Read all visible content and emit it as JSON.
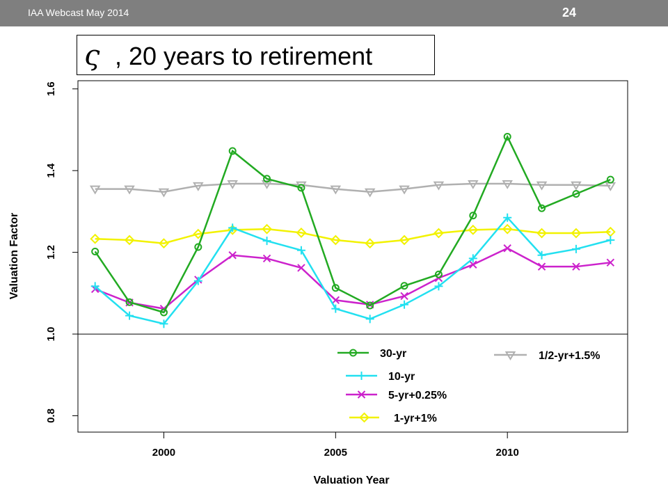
{
  "header": {
    "left_text": "IAA Webcast May 2014",
    "page_number": "24"
  },
  "title": {
    "symbol": "ς",
    "text": ", 20 years to retirement"
  },
  "chart_data": {
    "type": "line",
    "xlabel": "Valuation Year",
    "ylabel": "Valuation Factor",
    "xlim": [
      1997.5,
      2013.5
    ],
    "ylim": [
      0.76,
      1.62
    ],
    "x_ticks": [
      2000,
      2005,
      2010
    ],
    "y_ticks": [
      0.8,
      1.0,
      1.2,
      1.4,
      1.6
    ],
    "reference_line": 1.0,
    "x": [
      1998,
      1999,
      2000,
      2001,
      2002,
      2003,
      2004,
      2005,
      2006,
      2007,
      2008,
      2009,
      2010,
      2011,
      2012,
      2013
    ],
    "series": [
      {
        "name": "30-yr",
        "color": "#22aa22",
        "marker": "circle",
        "values": [
          1.202,
          1.078,
          1.053,
          1.213,
          1.448,
          1.38,
          1.358,
          1.113,
          1.07,
          1.118,
          1.146,
          1.29,
          1.483,
          1.308,
          1.343,
          1.378
        ]
      },
      {
        "name": "10-yr",
        "color": "#22e0f0",
        "marker": "plus",
        "values": [
          1.117,
          1.045,
          1.025,
          1.13,
          1.26,
          1.228,
          1.205,
          1.062,
          1.037,
          1.072,
          1.117,
          1.185,
          1.285,
          1.193,
          1.208,
          1.23
        ]
      },
      {
        "name": "5-yr+0.25%",
        "color": "#cc22cc",
        "marker": "x",
        "values": [
          1.11,
          1.077,
          1.062,
          1.133,
          1.193,
          1.185,
          1.162,
          1.083,
          1.072,
          1.093,
          1.137,
          1.17,
          1.21,
          1.165,
          1.165,
          1.175
        ]
      },
      {
        "name": "1-yr+1%",
        "color": "#f2f200",
        "marker": "diamond",
        "values": [
          1.233,
          1.23,
          1.222,
          1.245,
          1.255,
          1.257,
          1.248,
          1.23,
          1.222,
          1.23,
          1.247,
          1.255,
          1.257,
          1.247,
          1.247,
          1.25
        ]
      },
      {
        "name": "1/2-yr+1.5%",
        "color": "#b0b0b0",
        "marker": "triangle-down",
        "values": [
          1.355,
          1.355,
          1.348,
          1.363,
          1.368,
          1.368,
          1.365,
          1.355,
          1.348,
          1.355,
          1.365,
          1.368,
          1.368,
          1.365,
          1.365,
          1.363
        ]
      }
    ],
    "legend_placement": "bottom"
  }
}
